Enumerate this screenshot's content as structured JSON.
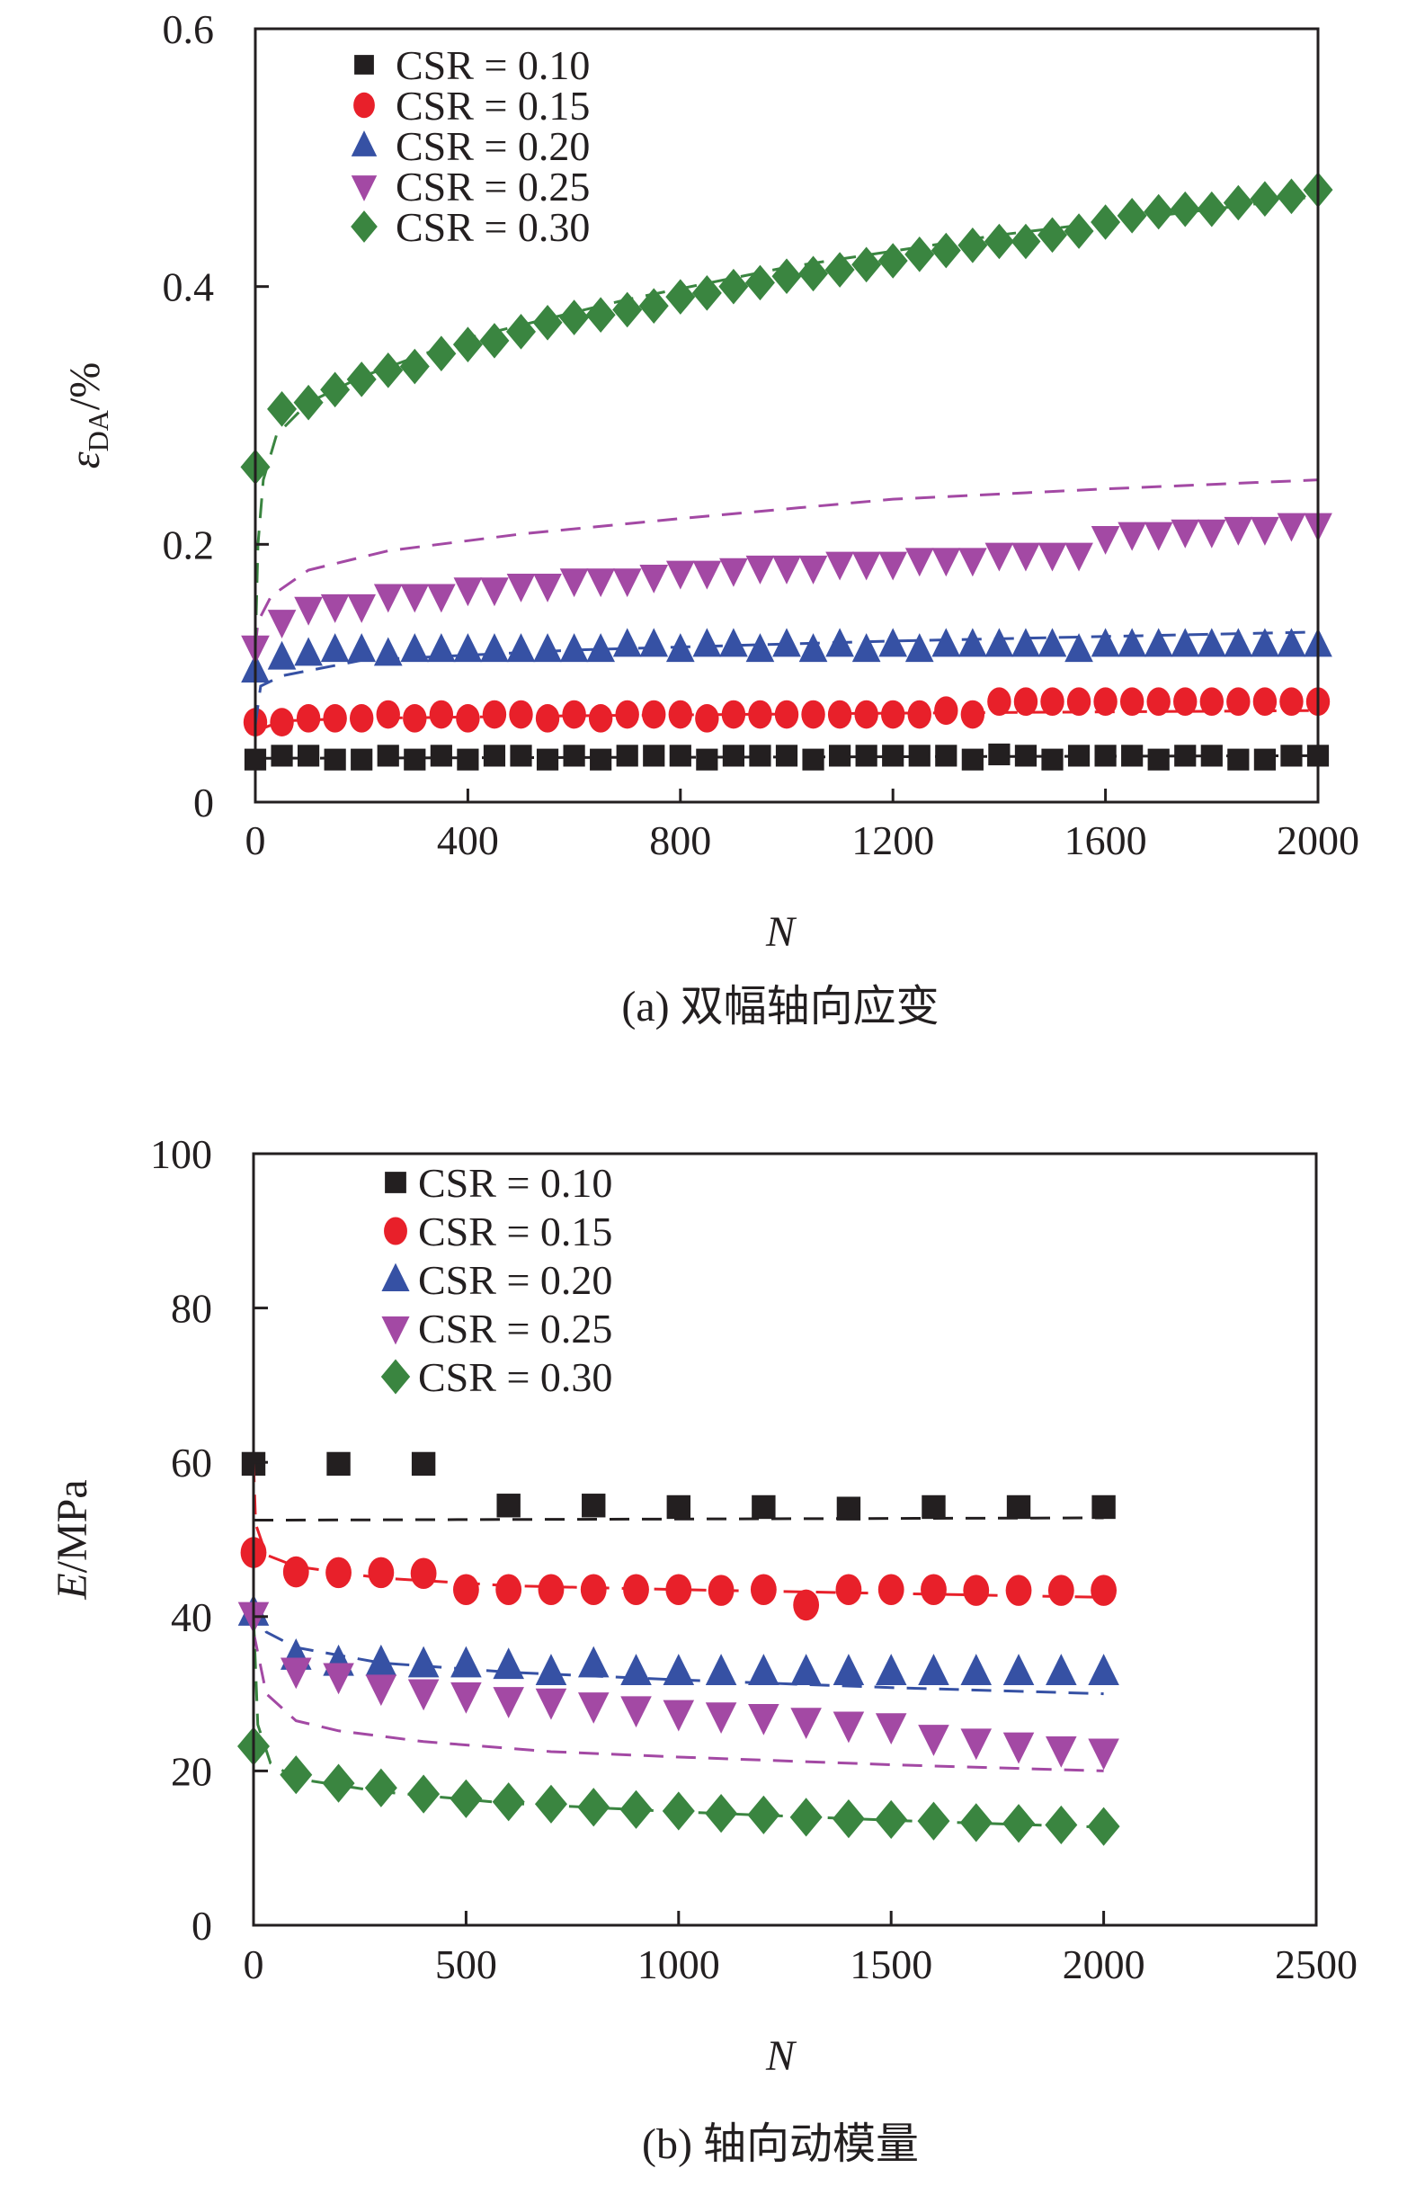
{
  "chart_data": [
    {
      "id": "a",
      "type": "scatter",
      "caption": "(a) 双幅轴向应变",
      "xlabel": "N",
      "ylabel_main": "ε",
      "ylabel_sub": "DA",
      "ylabel_unit": "/%",
      "xlim": [
        0,
        2000
      ],
      "ylim": [
        0,
        0.6
      ],
      "xticks": [
        "0",
        "400",
        "800",
        "1200",
        "1600",
        "2000"
      ],
      "xtick_values": [
        0,
        400,
        800,
        1200,
        1600,
        2000
      ],
      "yticks": [
        "0",
        "0.2",
        "0.4",
        "0.6"
      ],
      "ytick_values": [
        0,
        0.2,
        0.4,
        0.6
      ],
      "legend_position": "top-left",
      "x": [
        0,
        50,
        100,
        150,
        200,
        250,
        300,
        350,
        400,
        450,
        500,
        550,
        600,
        650,
        700,
        750,
        800,
        850,
        900,
        950,
        1000,
        1050,
        1100,
        1150,
        1200,
        1250,
        1300,
        1350,
        1400,
        1450,
        1500,
        1550,
        1600,
        1650,
        1700,
        1750,
        1800,
        1850,
        1900,
        1950,
        2000
      ],
      "series": [
        {
          "name": "CSR = 0.10",
          "marker": "square",
          "color": "#231f20",
          "values": [
            0.033,
            0.036,
            0.036,
            0.033,
            0.033,
            0.036,
            0.033,
            0.036,
            0.033,
            0.036,
            0.036,
            0.033,
            0.036,
            0.033,
            0.036,
            0.036,
            0.036,
            0.033,
            0.036,
            0.036,
            0.036,
            0.033,
            0.036,
            0.036,
            0.036,
            0.036,
            0.036,
            0.033,
            0.037,
            0.036,
            0.033,
            0.036,
            0.036,
            0.036,
            0.033,
            0.036,
            0.036,
            0.033,
            0.033,
            0.036,
            0.036
          ],
          "fit": [
            [
              0,
              0.034
            ],
            [
              2000,
              0.036
            ]
          ]
        },
        {
          "name": "CSR = 0.15",
          "marker": "circle",
          "color": "#e8202a",
          "values": [
            0.062,
            0.062,
            0.065,
            0.065,
            0.065,
            0.068,
            0.065,
            0.068,
            0.065,
            0.068,
            0.068,
            0.065,
            0.068,
            0.065,
            0.068,
            0.068,
            0.068,
            0.065,
            0.068,
            0.068,
            0.068,
            0.068,
            0.068,
            0.068,
            0.068,
            0.068,
            0.071,
            0.068,
            0.078,
            0.078,
            0.078,
            0.078,
            0.078,
            0.078,
            0.078,
            0.078,
            0.078,
            0.078,
            0.078,
            0.078,
            0.078
          ],
          "fit": [
            [
              0,
              0.055
            ],
            [
              50,
              0.063
            ],
            [
              200,
              0.065
            ],
            [
              600,
              0.067
            ],
            [
              1200,
              0.069
            ],
            [
              2000,
              0.071
            ]
          ]
        },
        {
          "name": "CSR = 0.20",
          "marker": "triangle-up",
          "color": "#3651a4",
          "values": [
            0.102,
            0.112,
            0.115,
            0.118,
            0.118,
            0.115,
            0.118,
            0.118,
            0.118,
            0.118,
            0.118,
            0.118,
            0.118,
            0.118,
            0.122,
            0.122,
            0.118,
            0.122,
            0.122,
            0.118,
            0.122,
            0.118,
            0.122,
            0.118,
            0.122,
            0.118,
            0.122,
            0.122,
            0.122,
            0.122,
            0.122,
            0.118,
            0.122,
            0.122,
            0.122,
            0.122,
            0.122,
            0.122,
            0.122,
            0.122,
            0.122
          ],
          "fit": [
            [
              0,
              0.06
            ],
            [
              10,
              0.09
            ],
            [
              50,
              0.098
            ],
            [
              200,
              0.11
            ],
            [
              600,
              0.118
            ],
            [
              1200,
              0.125
            ],
            [
              2000,
              0.132
            ]
          ]
        },
        {
          "name": "CSR = 0.25",
          "marker": "triangle-down",
          "color": "#a349a4",
          "values": [
            0.12,
            0.14,
            0.15,
            0.152,
            0.152,
            0.16,
            0.16,
            0.16,
            0.165,
            0.165,
            0.168,
            0.168,
            0.172,
            0.172,
            0.172,
            0.175,
            0.178,
            0.178,
            0.18,
            0.182,
            0.182,
            0.182,
            0.185,
            0.185,
            0.185,
            0.188,
            0.188,
            0.188,
            0.192,
            0.192,
            0.192,
            0.192,
            0.205,
            0.208,
            0.208,
            0.21,
            0.21,
            0.212,
            0.212,
            0.215,
            0.215
          ],
          "fit": [
            [
              0,
              0.12
            ],
            [
              5,
              0.14
            ],
            [
              30,
              0.16
            ],
            [
              100,
              0.18
            ],
            [
              250,
              0.195
            ],
            [
              500,
              0.208
            ],
            [
              800,
              0.22
            ],
            [
              1200,
              0.235
            ],
            [
              1600,
              0.243
            ],
            [
              2000,
              0.25
            ]
          ]
        },
        {
          "name": "CSR = 0.30",
          "marker": "diamond",
          "color": "#3a8540",
          "values": [
            0.26,
            0.305,
            0.31,
            0.32,
            0.328,
            0.335,
            0.338,
            0.348,
            0.355,
            0.358,
            0.365,
            0.372,
            0.376,
            0.378,
            0.382,
            0.385,
            0.392,
            0.395,
            0.4,
            0.403,
            0.408,
            0.41,
            0.413,
            0.417,
            0.42,
            0.425,
            0.428,
            0.432,
            0.435,
            0.435,
            0.44,
            0.443,
            0.45,
            0.455,
            0.458,
            0.46,
            0.46,
            0.465,
            0.468,
            0.47,
            0.475
          ],
          "fit": [
            [
              0,
              0.12
            ],
            [
              5,
              0.2
            ],
            [
              15,
              0.25
            ],
            [
              40,
              0.285
            ],
            [
              100,
              0.31
            ],
            [
              200,
              0.33
            ],
            [
              400,
              0.36
            ],
            [
              700,
              0.39
            ],
            [
              1000,
              0.415
            ],
            [
              1400,
              0.44
            ],
            [
              1700,
              0.455
            ],
            [
              2000,
              0.47
            ]
          ]
        }
      ]
    },
    {
      "id": "b",
      "type": "scatter",
      "caption": "(b) 轴向动模量",
      "xlabel": "N",
      "ylabel_italic": "E",
      "ylabel_rest": "/MPa",
      "xlim": [
        0,
        2500
      ],
      "ylim": [
        0,
        100
      ],
      "xticks": [
        "0",
        "500",
        "1000",
        "1500",
        "2000",
        "2500"
      ],
      "xtick_values": [
        0,
        500,
        1000,
        1500,
        2000,
        2500
      ],
      "yticks": [
        "0",
        "20",
        "40",
        "60",
        "80",
        "100"
      ],
      "ytick_values": [
        0,
        20,
        40,
        60,
        80,
        100
      ],
      "legend_position": "top-left",
      "series": [
        {
          "name": "CSR = 0.10",
          "marker": "square",
          "color": "#231f20",
          "x": [
            0,
            200,
            400,
            600,
            800,
            1000,
            1200,
            1400,
            1600,
            1800,
            2000
          ],
          "values": [
            59.8,
            59.8,
            59.8,
            54.4,
            54.4,
            54.2,
            54.2,
            54.0,
            54.2,
            54.2,
            54.2
          ],
          "fit": [
            [
              0,
              52.5
            ],
            [
              2000,
              52.8
            ]
          ]
        },
        {
          "name": "CSR = 0.15",
          "marker": "circle",
          "color": "#e8202a",
          "x": [
            0,
            100,
            200,
            300,
            400,
            500,
            600,
            700,
            800,
            900,
            1000,
            1100,
            1200,
            1300,
            1400,
            1500,
            1600,
            1700,
            1800,
            1900,
            2000
          ],
          "values": [
            48.3,
            45.8,
            45.7,
            45.7,
            45.6,
            43.5,
            43.5,
            43.5,
            43.5,
            43.5,
            43.5,
            43.4,
            43.5,
            41.5,
            43.5,
            43.5,
            43.5,
            43.4,
            43.4,
            43.4,
            43.4
          ],
          "fit": [
            [
              0,
              60
            ],
            [
              5,
              52
            ],
            [
              30,
              48
            ],
            [
              100,
              46.5
            ],
            [
              300,
              45
            ],
            [
              600,
              44
            ],
            [
              1000,
              43.5
            ],
            [
              1500,
              43
            ],
            [
              2000,
              42.5
            ]
          ]
        },
        {
          "name": "CSR = 0.20",
          "marker": "triangle-up",
          "color": "#3651a4",
          "x": [
            0,
            100,
            200,
            300,
            400,
            500,
            600,
            700,
            800,
            900,
            1000,
            1100,
            1200,
            1300,
            1400,
            1500,
            1600,
            1700,
            1800,
            1900,
            2000
          ],
          "values": [
            40.5,
            34.8,
            34.0,
            34.0,
            33.8,
            33.8,
            33.6,
            32.8,
            33.8,
            32.8,
            32.8,
            32.8,
            32.8,
            32.8,
            32.8,
            32.8,
            32.8,
            32.8,
            32.8,
            32.8,
            32.8
          ],
          "fit": [
            [
              0,
              42
            ],
            [
              30,
              38
            ],
            [
              100,
              36
            ],
            [
              300,
              34
            ],
            [
              600,
              32.8
            ],
            [
              1000,
              31.8
            ],
            [
              1500,
              30.8
            ],
            [
              2000,
              30
            ]
          ]
        },
        {
          "name": "CSR = 0.25",
          "marker": "triangle-down",
          "color": "#a349a4",
          "x": [
            0,
            100,
            200,
            300,
            400,
            500,
            600,
            700,
            800,
            900,
            1000,
            1100,
            1200,
            1300,
            1400,
            1500,
            1600,
            1700,
            1800,
            1900,
            2000
          ],
          "values": [
            40.2,
            33.0,
            32.3,
            30.8,
            30.2,
            29.8,
            29.2,
            29.0,
            28.5,
            28.0,
            27.5,
            27.2,
            27.0,
            26.5,
            26.0,
            25.8,
            24.3,
            23.8,
            23.3,
            22.8,
            22.5
          ],
          "fit": [
            [
              0,
              38
            ],
            [
              30,
              30
            ],
            [
              100,
              26.5
            ],
            [
              200,
              25.2
            ],
            [
              400,
              23.8
            ],
            [
              700,
              22.5
            ],
            [
              1000,
              21.8
            ],
            [
              1500,
              20.8
            ],
            [
              2000,
              20
            ]
          ]
        },
        {
          "name": "CSR = 0.30",
          "marker": "diamond",
          "color": "#3a8540",
          "x": [
            0,
            100,
            200,
            300,
            400,
            500,
            600,
            700,
            800,
            900,
            1000,
            1100,
            1200,
            1300,
            1400,
            1500,
            1600,
            1700,
            1800,
            1900,
            2000
          ],
          "values": [
            23.2,
            19.5,
            18.4,
            17.8,
            17.0,
            16.4,
            16.0,
            15.7,
            15.3,
            15.0,
            14.8,
            14.5,
            14.3,
            14.0,
            13.8,
            13.7,
            13.5,
            13.3,
            13.2,
            13.0,
            12.8
          ],
          "fit": [
            [
              0,
              40
            ],
            [
              10,
              26
            ],
            [
              40,
              21
            ],
            [
              100,
              19
            ],
            [
              300,
              17.3
            ],
            [
              600,
              15.8
            ],
            [
              1000,
              14.7
            ],
            [
              1500,
              13.6
            ],
            [
              2000,
              12.7
            ]
          ]
        }
      ]
    }
  ]
}
